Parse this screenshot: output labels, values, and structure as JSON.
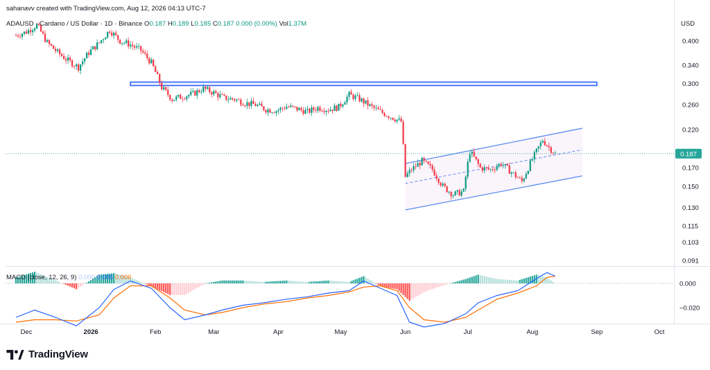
{
  "header": {
    "credit": "sahanavv created with TradingView.com, Aug 12, 2026 04:13 UTC-7",
    "currency": "USD"
  },
  "legend": {
    "symbol": "ADAUSD · Cardano / US Dollar · 1D · Binance",
    "open_label": "O",
    "open": "0.187",
    "high_label": "H",
    "high": "0.189",
    "low_label": "L",
    "low": "0.185",
    "close_label": "C",
    "close": "0.187",
    "change": "0.000 (0.00%)",
    "vol_label": "Vol",
    "vol": "1.37M"
  },
  "macd_legend": {
    "title": "MACD (close, 12, 26, 9)",
    "hist_value": "0.000",
    "macd_value": "0.006",
    "signal_value": "0.006"
  },
  "brand": {
    "name": "TradingView"
  },
  "colors": {
    "up": "#089981",
    "down": "#f23645",
    "channel": "#5b8def",
    "resistance": "#2962ff",
    "macd": "#2962ff",
    "signal": "#ff6d00",
    "price_line": "#26a69a",
    "price_label_bg": "#26a69a"
  },
  "chart_data": [
    {
      "type": "candlestick",
      "title": "ADAUSD · Cardano / US Dollar · 1D · Binance",
      "ylabel": "USD",
      "y_scale": "log",
      "y_ticks": [
        0.4,
        0.34,
        0.3,
        0.26,
        0.22,
        0.17,
        0.15,
        0.13,
        0.115,
        0.103,
        0.091
      ],
      "y_tick_labels": [
        "0.400",
        "0.340",
        "0.300",
        "0.260",
        "0.220",
        "0.170",
        "0.150",
        "0.130",
        "0.115",
        "0.103",
        "0.091"
      ],
      "x_tick_labels": [
        "Dec",
        "2026",
        "Feb",
        "Mar",
        "Apr",
        "May",
        "Jun",
        "Jul",
        "Aug",
        "Sep",
        "Oct"
      ],
      "x_tick_dates": [
        "2025-12-01",
        "2026-01-01",
        "2026-02-01",
        "2026-03-01",
        "2026-04-01",
        "2026-05-01",
        "2026-06-01",
        "2026-07-01",
        "2026-08-01",
        "2026-09-01",
        "2026-10-01"
      ],
      "last_price": 0.187,
      "last_price_label": "0.187",
      "close_series": {
        "dates": [
          "2025-11-26",
          "2025-12-01",
          "2025-12-06",
          "2025-12-11",
          "2025-12-16",
          "2025-12-21",
          "2025-12-26",
          "2025-12-31",
          "2026-01-05",
          "2026-01-10",
          "2026-01-15",
          "2026-01-20",
          "2026-01-25",
          "2026-01-30",
          "2026-02-04",
          "2026-02-09",
          "2026-02-14",
          "2026-02-19",
          "2026-02-24",
          "2026-03-01",
          "2026-03-06",
          "2026-03-11",
          "2026-03-16",
          "2026-03-21",
          "2026-03-26",
          "2026-03-31",
          "2026-04-05",
          "2026-04-10",
          "2026-04-15",
          "2026-04-20",
          "2026-04-25",
          "2026-04-30",
          "2026-05-05",
          "2026-05-10",
          "2026-05-15",
          "2026-05-20",
          "2026-05-25",
          "2026-05-30",
          "2026-06-01",
          "2026-06-04",
          "2026-06-09",
          "2026-06-14",
          "2026-06-19",
          "2026-06-24",
          "2026-06-29",
          "2026-07-02",
          "2026-07-07",
          "2026-07-12",
          "2026-07-17",
          "2026-07-22",
          "2026-07-27",
          "2026-08-01",
          "2026-08-06",
          "2026-08-09",
          "2026-08-12"
        ],
        "values": [
          0.415,
          0.425,
          0.445,
          0.395,
          0.37,
          0.35,
          0.335,
          0.37,
          0.395,
          0.43,
          0.4,
          0.39,
          0.375,
          0.345,
          0.292,
          0.27,
          0.275,
          0.28,
          0.29,
          0.282,
          0.272,
          0.27,
          0.263,
          0.26,
          0.252,
          0.25,
          0.257,
          0.253,
          0.248,
          0.255,
          0.252,
          0.256,
          0.278,
          0.27,
          0.258,
          0.248,
          0.24,
          0.232,
          0.16,
          0.168,
          0.178,
          0.168,
          0.15,
          0.142,
          0.145,
          0.19,
          0.17,
          0.168,
          0.175,
          0.165,
          0.155,
          0.18,
          0.205,
          0.195,
          0.187
        ]
      },
      "resistance_zone": {
        "from_date": "2026-01-20",
        "to_date": "2026-09-01",
        "low": 0.296,
        "high": 0.303
      },
      "channel": {
        "from_date": "2026-06-01",
        "to_date": "2026-08-25",
        "upper": [
          0.175,
          0.222
        ],
        "middle": [
          0.153,
          0.192
        ],
        "lower": [
          0.128,
          0.161
        ]
      }
    },
    {
      "type": "macd",
      "title": "MACD (close, 12, 26, 9)",
      "y_ticks": [
        0.0,
        -0.02
      ],
      "y_tick_labels": [
        "0.000",
        "−0.020"
      ],
      "dates": [
        "2025-11-26",
        "2025-12-05",
        "2025-12-15",
        "2025-12-25",
        "2026-01-05",
        "2026-01-12",
        "2026-01-20",
        "2026-01-30",
        "2026-02-08",
        "2026-02-15",
        "2026-02-25",
        "2026-03-05",
        "2026-03-15",
        "2026-03-25",
        "2026-04-05",
        "2026-04-15",
        "2026-04-25",
        "2026-05-05",
        "2026-05-12",
        "2026-05-20",
        "2026-05-28",
        "2026-06-03",
        "2026-06-10",
        "2026-06-20",
        "2026-06-30",
        "2026-07-06",
        "2026-07-15",
        "2026-07-25",
        "2026-08-03",
        "2026-08-08",
        "2026-08-12"
      ],
      "macd": [
        -0.028,
        -0.022,
        -0.028,
        -0.035,
        -0.02,
        -0.005,
        0.002,
        -0.004,
        -0.02,
        -0.03,
        -0.026,
        -0.022,
        -0.018,
        -0.016,
        -0.013,
        -0.011,
        -0.008,
        -0.006,
        0.002,
        -0.004,
        -0.01,
        -0.032,
        -0.036,
        -0.033,
        -0.025,
        -0.016,
        -0.01,
        -0.006,
        0.004,
        0.009,
        0.006
      ],
      "signal": [
        -0.032,
        -0.03,
        -0.03,
        -0.031,
        -0.026,
        -0.012,
        -0.002,
        -0.002,
        -0.012,
        -0.022,
        -0.026,
        -0.024,
        -0.02,
        -0.017,
        -0.015,
        -0.012,
        -0.01,
        -0.007,
        -0.003,
        -0.002,
        -0.006,
        -0.02,
        -0.03,
        -0.032,
        -0.028,
        -0.022,
        -0.013,
        -0.008,
        -0.002,
        0.005,
        0.006
      ]
    }
  ]
}
